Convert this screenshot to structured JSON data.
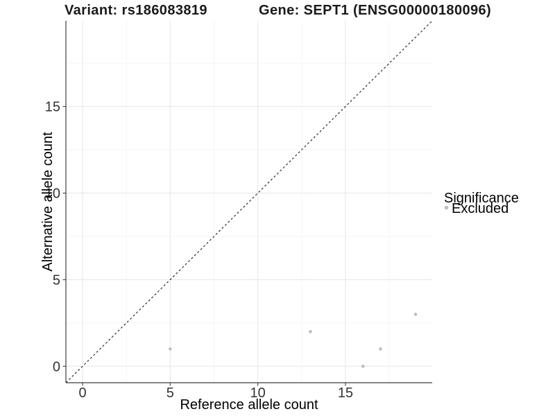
{
  "titles": {
    "variant": "Variant: rs186083819",
    "gene": "Gene: SEPT1 (ENSG00000180096)"
  },
  "chart_data": {
    "type": "scatter",
    "xlabel": "Reference allele count",
    "ylabel": "Alternative allele count",
    "x_ticks": [
      0,
      5,
      10,
      15
    ],
    "y_ticks": [
      0,
      5,
      10,
      15
    ],
    "x_minor_ticks": [
      2.5,
      7.5,
      12.5,
      17.5
    ],
    "y_minor_ticks": [
      2.5,
      7.5,
      12.5,
      17.5
    ],
    "xlim": [
      -0.95,
      19.95
    ],
    "ylim": [
      -0.95,
      19.95
    ],
    "grid": "major+minor",
    "identity_line": {
      "slope": 1,
      "intercept": 0,
      "style": "dashed",
      "color": "#1a1a1a"
    },
    "series": [
      {
        "name": "Excluded",
        "color": "#bdbdbd",
        "marker": "circle",
        "points": [
          {
            "x": 5,
            "y": 1
          },
          {
            "x": 13,
            "y": 2
          },
          {
            "x": 16,
            "y": 0
          },
          {
            "x": 17,
            "y": 1
          },
          {
            "x": 19,
            "y": 3
          }
        ]
      }
    ],
    "legend": {
      "title": "Significance",
      "position": "right",
      "items": [
        {
          "label": "Excluded",
          "color": "#bdbdbd",
          "marker": "circle"
        }
      ]
    }
  },
  "colors": {
    "background": "#ffffff",
    "grid_major": "#e5e5e5",
    "grid_minor": "#f3f3f3",
    "axis_line": "#3c3c3c",
    "point": "#bdbdbd",
    "text": "#1a1a1a"
  }
}
